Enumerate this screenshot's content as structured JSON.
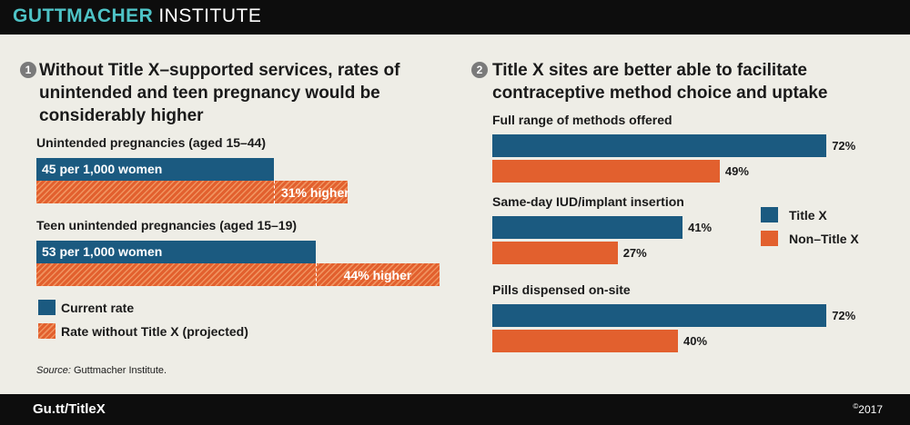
{
  "brand": {
    "name_bold": "GUTTMACHER",
    "name_light": "INSTITUTE"
  },
  "footer": {
    "url": "Gu.tt/TitleX",
    "copyright_symbol": "©",
    "year": "2017"
  },
  "source": {
    "label": "Source:",
    "text": "Guttmacher Institute."
  },
  "colors": {
    "current": "#1b5a80",
    "projected": "#e2602e",
    "title_x": "#1b5a80",
    "non_title_x": "#e2602e"
  },
  "chart_data": [
    {
      "type": "bar",
      "number": "1",
      "title": "Without Title X–supported services, rates of unintended and teen pregnancy would be considerably higher",
      "groups": [
        {
          "label": "Unintended pregnancies (aged 15–44)",
          "current": 45,
          "current_label": "45 per 1,000 women",
          "increase_pct": 31,
          "increase_label": "31% higher"
        },
        {
          "label": "Teen unintended pregnancies (aged 15–19)",
          "current": 53,
          "current_label": "53 per 1,000 women",
          "increase_pct": 44,
          "increase_label": "44% higher"
        }
      ],
      "legend": {
        "current": "Current rate",
        "projected": "Rate without Title X (projected)"
      }
    },
    {
      "type": "bar",
      "number": "2",
      "title": "Title X sites are better able to facilitate contraceptive method choice and uptake",
      "categories": [
        "Full range of methods offered",
        "Same-day IUD/implant insertion",
        "Pills dispensed on-site"
      ],
      "series": [
        {
          "name": "Title X",
          "values": [
            72,
            41,
            72
          ],
          "labels": [
            "72%",
            "41%",
            "72%"
          ]
        },
        {
          "name": "Non–Title X",
          "values": [
            49,
            27,
            40
          ],
          "labels": [
            "49%",
            "27%",
            "40%"
          ]
        }
      ],
      "legend_position": "right"
    }
  ]
}
